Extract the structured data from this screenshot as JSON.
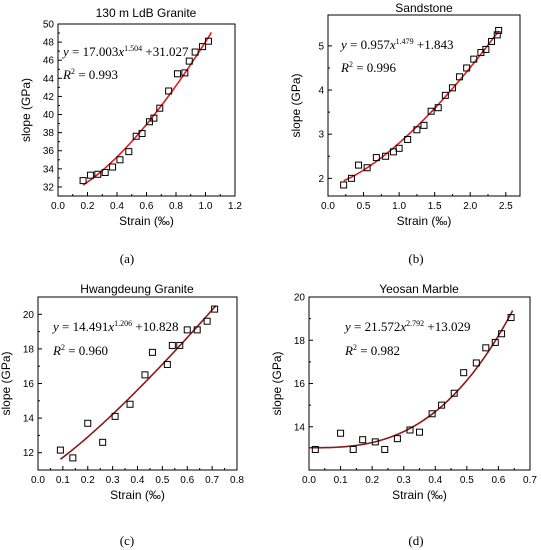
{
  "chart_data": [
    {
      "type": "scatter",
      "title": "130 m LdB Granite",
      "xlabel": "Strain (‰)",
      "ylabel": "slope (GPa)",
      "xlim": [
        0.0,
        1.2
      ],
      "ylim": [
        31,
        50
      ],
      "xticks": [
        "0.0",
        "0.2",
        "0.4",
        "0.6",
        "0.8",
        "1.0",
        "1.2"
      ],
      "yticks": [
        "32",
        "34",
        "36",
        "38",
        "40",
        "42",
        "44",
        "46",
        "48",
        "50"
      ],
      "equation": {
        "lhs": "y",
        "coef": "= 17.003",
        "var": "x",
        "exp": "1.504",
        "tail": "+31.027"
      },
      "r2": {
        "label": "R",
        "sup": "2",
        "value": " = 0.993"
      },
      "caption": "(a)",
      "fit_color": "#e41a1c",
      "fit": {
        "a": 17.003,
        "b": 1.504,
        "c": 31.027,
        "x_range": [
          0.17,
          1.04
        ]
      },
      "points": [
        {
          "x": 0.17,
          "y": 32.7
        },
        {
          "x": 0.22,
          "y": 33.3
        },
        {
          "x": 0.27,
          "y": 33.4
        },
        {
          "x": 0.32,
          "y": 33.6
        },
        {
          "x": 0.37,
          "y": 34.2
        },
        {
          "x": 0.42,
          "y": 35.0
        },
        {
          "x": 0.48,
          "y": 35.9
        },
        {
          "x": 0.53,
          "y": 37.6
        },
        {
          "x": 0.57,
          "y": 37.9
        },
        {
          "x": 0.62,
          "y": 39.2
        },
        {
          "x": 0.65,
          "y": 39.6
        },
        {
          "x": 0.69,
          "y": 40.7
        },
        {
          "x": 0.75,
          "y": 42.6
        },
        {
          "x": 0.81,
          "y": 44.5
        },
        {
          "x": 0.86,
          "y": 44.6
        },
        {
          "x": 0.89,
          "y": 45.9
        },
        {
          "x": 0.93,
          "y": 46.9
        },
        {
          "x": 0.98,
          "y": 47.5
        },
        {
          "x": 1.02,
          "y": 48.1
        }
      ]
    },
    {
      "type": "scatter",
      "title": "Sandstone",
      "xlabel": "Strain (‰)",
      "ylabel": "slope (GPa)",
      "xlim": [
        0.0,
        2.7
      ],
      "ylim": [
        1.6,
        5.7
      ],
      "xticks": [
        "0.0",
        "0.5",
        "1.0",
        "1.5",
        "2.0",
        "2.5"
      ],
      "xtick_values": [
        0.0,
        0.5,
        1.0,
        1.5,
        2.0,
        2.5
      ],
      "yticks": [
        "2",
        "3",
        "4",
        "5"
      ],
      "ytick_values": [
        2,
        3,
        4,
        5
      ],
      "equation": {
        "lhs": "y",
        "coef": "= 0.957",
        "var": "x",
        "exp": "1.479",
        "tail": "+1.843"
      },
      "r2": {
        "label": "R",
        "sup": "2",
        "value": " = 0.996"
      },
      "caption": "(b)",
      "fit_color": "#e41a1c",
      "fit": {
        "a": 0.957,
        "b": 1.479,
        "c": 1.843,
        "x_range": [
          0.22,
          2.4
        ]
      },
      "points": [
        {
          "x": 0.22,
          "y": 1.85
        },
        {
          "x": 0.33,
          "y": 2.0
        },
        {
          "x": 0.43,
          "y": 2.3
        },
        {
          "x": 0.55,
          "y": 2.24
        },
        {
          "x": 0.68,
          "y": 2.47
        },
        {
          "x": 0.81,
          "y": 2.5
        },
        {
          "x": 0.92,
          "y": 2.6
        },
        {
          "x": 1.0,
          "y": 2.68
        },
        {
          "x": 1.12,
          "y": 2.88
        },
        {
          "x": 1.25,
          "y": 3.1
        },
        {
          "x": 1.35,
          "y": 3.2
        },
        {
          "x": 1.45,
          "y": 3.52
        },
        {
          "x": 1.55,
          "y": 3.6
        },
        {
          "x": 1.65,
          "y": 3.88
        },
        {
          "x": 1.75,
          "y": 4.05
        },
        {
          "x": 1.85,
          "y": 4.3
        },
        {
          "x": 1.95,
          "y": 4.5
        },
        {
          "x": 2.05,
          "y": 4.7
        },
        {
          "x": 2.15,
          "y": 4.85
        },
        {
          "x": 2.22,
          "y": 4.92
        },
        {
          "x": 2.3,
          "y": 5.1
        },
        {
          "x": 2.38,
          "y": 5.25
        },
        {
          "x": 2.4,
          "y": 5.35
        }
      ]
    },
    {
      "type": "scatter",
      "title": "Hwangdeung Granite",
      "xlabel": "Strain (‰)",
      "ylabel": "slope (GPa)",
      "xlim": [
        0.0,
        0.8
      ],
      "ylim": [
        11,
        21
      ],
      "xticks": [
        "0.0",
        "0.1",
        "0.2",
        "0.3",
        "0.4",
        "0.5",
        "0.6",
        "0.7",
        "0.8"
      ],
      "yticks": [
        "12",
        "14",
        "16",
        "18",
        "20"
      ],
      "ytick_values": [
        12,
        14,
        16,
        18,
        20
      ],
      "equation": {
        "lhs": "y",
        "coef": "= 14.491",
        "var": "x",
        "exp": "1.206",
        "tail": "+10.828"
      },
      "r2": {
        "label": "R",
        "sup": "2",
        "value": " = 0.960"
      },
      "caption": "(c)",
      "fit_color": "#8b1a1a",
      "fit": {
        "a": 14.491,
        "b": 1.206,
        "c": 10.828,
        "x_range": [
          0.09,
          0.715
        ]
      },
      "points": [
        {
          "x": 0.09,
          "y": 12.15
        },
        {
          "x": 0.14,
          "y": 11.7
        },
        {
          "x": 0.2,
          "y": 13.7
        },
        {
          "x": 0.26,
          "y": 12.6
        },
        {
          "x": 0.31,
          "y": 14.1
        },
        {
          "x": 0.37,
          "y": 14.8
        },
        {
          "x": 0.43,
          "y": 16.5
        },
        {
          "x": 0.46,
          "y": 17.8
        },
        {
          "x": 0.52,
          "y": 17.1
        },
        {
          "x": 0.54,
          "y": 18.2
        },
        {
          "x": 0.57,
          "y": 18.2
        },
        {
          "x": 0.6,
          "y": 19.1
        },
        {
          "x": 0.64,
          "y": 19.1
        },
        {
          "x": 0.68,
          "y": 19.6
        },
        {
          "x": 0.71,
          "y": 20.3
        }
      ]
    },
    {
      "type": "scatter",
      "title": "Yeosan Marble",
      "xlabel": "Strain (‰)",
      "ylabel": "slope (GPa)",
      "xlim": [
        0.0,
        0.7
      ],
      "ylim": [
        12,
        20
      ],
      "xticks": [
        "0.0",
        "0.1",
        "0.2",
        "0.3",
        "0.4",
        "0.5",
        "0.6",
        "0.7"
      ],
      "yticks": [
        "14",
        "16",
        "18",
        "20"
      ],
      "ytick_values": [
        14,
        16,
        18,
        20
      ],
      "equation": {
        "lhs": "y",
        "coef": "= 21.572",
        "var": "x",
        "exp": "2.792",
        "tail": "+13.029"
      },
      "r2": {
        "label": "R",
        "sup": "2",
        "value": " = 0.982"
      },
      "caption": "(d)",
      "fit_color": "#8b1a1a",
      "fit": {
        "a": 21.572,
        "b": 2.792,
        "c": 13.029,
        "x_range": [
          0.0,
          0.645
        ]
      },
      "points": [
        {
          "x": 0.02,
          "y": 12.95
        },
        {
          "x": 0.1,
          "y": 13.7
        },
        {
          "x": 0.14,
          "y": 12.95
        },
        {
          "x": 0.17,
          "y": 13.4
        },
        {
          "x": 0.21,
          "y": 13.3
        },
        {
          "x": 0.24,
          "y": 12.95
        },
        {
          "x": 0.28,
          "y": 13.45
        },
        {
          "x": 0.32,
          "y": 13.85
        },
        {
          "x": 0.35,
          "y": 13.75
        },
        {
          "x": 0.39,
          "y": 14.6
        },
        {
          "x": 0.42,
          "y": 15.0
        },
        {
          "x": 0.46,
          "y": 15.55
        },
        {
          "x": 0.49,
          "y": 16.5
        },
        {
          "x": 0.53,
          "y": 16.95
        },
        {
          "x": 0.56,
          "y": 17.65
        },
        {
          "x": 0.59,
          "y": 17.9
        },
        {
          "x": 0.61,
          "y": 18.3
        },
        {
          "x": 0.64,
          "y": 19.05
        }
      ]
    }
  ]
}
